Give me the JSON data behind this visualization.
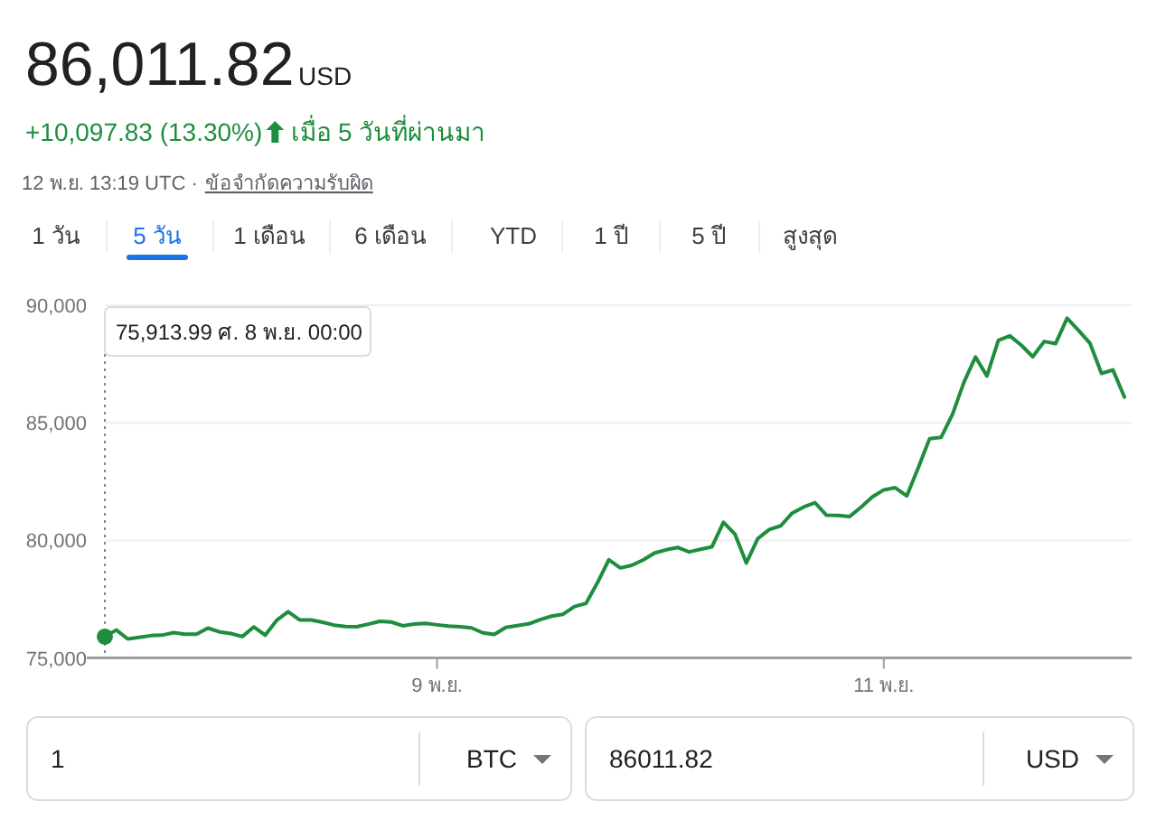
{
  "chart_data": {
    "type": "line",
    "title": "86,011.82",
    "subtitle": "USD",
    "annotations": [
      "+10,097.83 (13.30%)",
      "เมื่อ 5 วันที่ผ่านมา",
      "12 พ.ย. 13:19 UTC ·",
      "ข้อจำกัดความรับผิด",
      "1 วัน",
      "5 วัน",
      "1 เดือน",
      "6 เดือน",
      "YTD",
      "1 ปี",
      "5 ปี",
      "สูงสุด",
      "1",
      "BTC",
      "86011.82",
      "USD",
      "75,913.99 ศ. 8 พ.ย. 00:00"
    ],
    "categories": [
      null,
      null,
      null,
      null,
      null,
      null,
      null,
      null,
      null,
      null,
      null,
      null,
      null,
      null,
      null,
      null,
      null,
      null,
      null,
      null,
      null,
      null,
      null,
      null,
      null,
      null,
      null,
      null,
      null,
      "9 พ.ย.",
      null,
      null,
      null,
      null,
      null,
      null,
      null,
      null,
      null,
      null,
      null,
      null,
      null,
      null,
      null,
      null,
      null,
      null,
      null,
      null,
      null,
      null,
      null,
      null,
      null,
      null,
      null,
      null,
      null,
      null,
      null,
      null,
      null,
      null,
      null,
      null,
      null,
      null,
      "11 พ.ย.",
      null,
      null,
      null,
      null,
      null,
      null,
      null,
      null,
      null,
      null,
      null,
      null,
      null,
      null,
      null,
      null,
      null,
      null,
      null,
      null,
      null
    ],
    "series": [
      {
        "color": "#1e8e3e",
        "values": [
          75910,
          76190,
          75810,
          75880,
          75950,
          75970,
          76080,
          76010,
          76010,
          76270,
          76110,
          76040,
          75910,
          76320,
          75970,
          76600,
          76970,
          76620,
          76620,
          76520,
          76400,
          76340,
          76330,
          76440,
          76560,
          76530,
          76370,
          76440,
          76470,
          76410,
          76360,
          76330,
          76280,
          76070,
          76000,
          76300,
          76380,
          76450,
          76630,
          76780,
          76860,
          77190,
          77320,
          78200,
          79180,
          78830,
          78940,
          79170,
          79470,
          79600,
          79700,
          79510,
          79620,
          79730,
          80770,
          80270,
          79040,
          80080,
          80460,
          80620,
          81160,
          81420,
          81600,
          81070,
          81060,
          81010,
          81410,
          81850,
          82150,
          82240,
          81890,
          83080,
          84330,
          84380,
          85370,
          86730,
          87800,
          86990,
          88510,
          88700,
          88300,
          87810,
          88460,
          88370,
          89450,
          88930,
          88380,
          87100,
          87250,
          86100
        ]
      }
    ],
    "ylim": [
      75000,
      90000
    ],
    "yticks": [
      {
        "value": 75000,
        "label": "75,000"
      },
      {
        "value": 80000,
        "label": "80,000"
      },
      {
        "value": 85000,
        "label": "85,000"
      },
      {
        "value": 90000,
        "label": "90,000"
      }
    ],
    "grid": "y"
  }
}
